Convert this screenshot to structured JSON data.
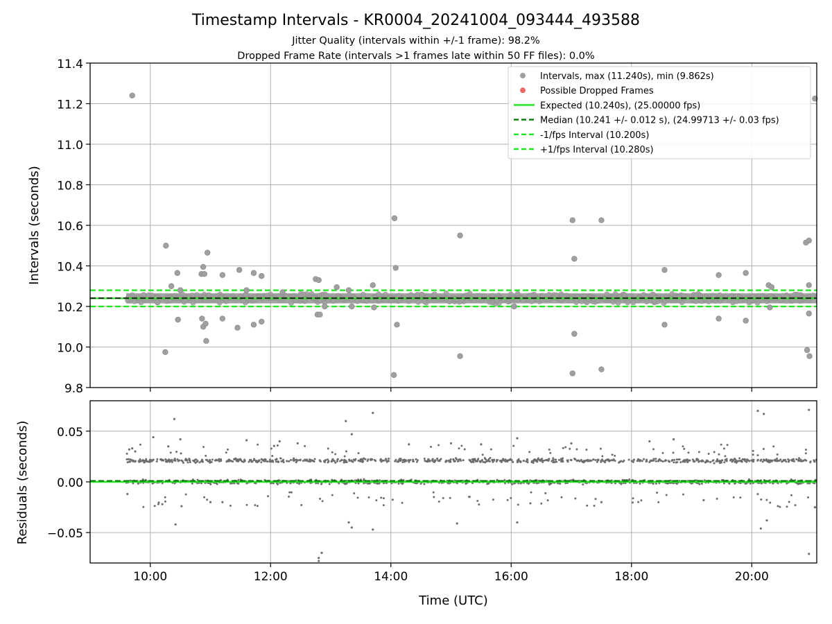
{
  "figure": {
    "title": "Timestamp Intervals - KR0004_20241004_093444_493588",
    "subtitle_1": "Jitter Quality (intervals within +/-1 frame): 98.2%",
    "subtitle_2": "Dropped Frame Rate (intervals >1 frames late within 50 FF files): 0.0%"
  },
  "colors": {
    "points": "#a0a0a0",
    "points_edge": "#8c8c8c",
    "dropped": "#f06a6a",
    "expected": "#1ee61e",
    "median": "#007a00",
    "interval_bounds": "#1ee61e",
    "residuals": "#6e6e6e",
    "grid": "#b0b0b0"
  },
  "chart_data": [
    {
      "type": "scatter",
      "panel": "intervals",
      "ylabel": "Intervals (seconds)",
      "xlim_hours": [
        9.0,
        21.08
      ],
      "ylim": [
        9.8,
        11.4
      ],
      "yticks": [
        9.8,
        10.0,
        10.2,
        10.4,
        10.6,
        10.8,
        11.0,
        11.2,
        11.4
      ],
      "ytick_labels": [
        "9.8",
        "10.0",
        "10.2",
        "10.4",
        "10.6",
        "10.8",
        "11.0",
        "11.2",
        "11.4"
      ],
      "grid": true,
      "legend_placement": "top-right",
      "legend": [
        {
          "label": "Intervals, max (11.240s), min (9.862s)",
          "kind": "point"
        },
        {
          "label": "Possible Dropped Frames",
          "kind": "dropped"
        },
        {
          "label": "Expected (10.240s), (25.00000 fps)",
          "kind": "solid"
        },
        {
          "label": "Median (10.241 +/- 0.012 s), (24.99713 +/- 0.03 fps)",
          "kind": "median"
        },
        {
          "label": "-1/fps Interval (10.200s)",
          "kind": "dash"
        },
        {
          "label": "+1/fps Interval (10.280s)",
          "kind": "dash"
        }
      ],
      "reference_lines": {
        "expected": 10.24,
        "median": 10.241,
        "lower": 10.2,
        "upper": 10.28
      },
      "band": {
        "x_start": 9.6,
        "x_end": 21.08,
        "low": 10.215,
        "high": 10.265
      },
      "outliers": [
        [
          9.7,
          11.24
        ],
        [
          10.26,
          10.5
        ],
        [
          10.25,
          9.975
        ],
        [
          10.12,
          10.22
        ],
        [
          10.35,
          10.3
        ],
        [
          10.45,
          10.365
        ],
        [
          10.46,
          10.135
        ],
        [
          10.5,
          10.28
        ],
        [
          10.85,
          10.36
        ],
        [
          10.88,
          10.395
        ],
        [
          10.86,
          10.14
        ],
        [
          10.9,
          10.36
        ],
        [
          10.88,
          10.1
        ],
        [
          10.92,
          10.115
        ],
        [
          10.95,
          10.465
        ],
        [
          10.93,
          10.03
        ],
        [
          11.2,
          10.355
        ],
        [
          11.2,
          10.14
        ],
        [
          11.48,
          10.38
        ],
        [
          11.45,
          10.095
        ],
        [
          11.6,
          10.28
        ],
        [
          11.72,
          10.365
        ],
        [
          11.72,
          10.11
        ],
        [
          11.85,
          10.35
        ],
        [
          11.85,
          10.125
        ],
        [
          12.2,
          10.27
        ],
        [
          12.75,
          10.335
        ],
        [
          12.8,
          10.33
        ],
        [
          12.78,
          10.16
        ],
        [
          12.82,
          10.16
        ],
        [
          12.9,
          10.2
        ],
        [
          13.1,
          10.295
        ],
        [
          13.3,
          10.28
        ],
        [
          13.35,
          10.2
        ],
        [
          13.7,
          10.305
        ],
        [
          13.72,
          10.195
        ],
        [
          14.06,
          10.635
        ],
        [
          14.08,
          10.39
        ],
        [
          14.1,
          10.11
        ],
        [
          14.05,
          9.862
        ],
        [
          15.15,
          10.55
        ],
        [
          15.15,
          9.955
        ],
        [
          16.05,
          10.2
        ],
        [
          17.02,
          10.625
        ],
        [
          17.05,
          10.435
        ],
        [
          17.05,
          10.065
        ],
        [
          17.02,
          9.87
        ],
        [
          17.5,
          10.625
        ],
        [
          17.5,
          9.89
        ],
        [
          18.55,
          10.38
        ],
        [
          18.55,
          10.11
        ],
        [
          19.45,
          10.355
        ],
        [
          19.45,
          10.14
        ],
        [
          19.9,
          10.365
        ],
        [
          19.9,
          10.13
        ],
        [
          20.28,
          10.305
        ],
        [
          20.33,
          10.295
        ],
        [
          20.3,
          10.195
        ],
        [
          20.9,
          10.515
        ],
        [
          20.95,
          10.525
        ],
        [
          20.92,
          9.985
        ],
        [
          20.96,
          9.955
        ],
        [
          20.95,
          10.305
        ],
        [
          20.95,
          10.165
        ],
        [
          21.05,
          11.225
        ]
      ]
    },
    {
      "type": "scatter",
      "panel": "residuals",
      "xlabel": "Time (UTC)",
      "ylabel": "Residuals (seconds)",
      "xlim_hours": [
        9.0,
        21.08
      ],
      "ylim": [
        -0.08,
        0.08
      ],
      "yticks": [
        -0.05,
        0.0,
        0.05
      ],
      "ytick_labels": [
        "−0.05",
        "0.00",
        "0.05"
      ],
      "xticks": [
        10,
        12,
        14,
        16,
        18,
        20
      ],
      "xtick_labels": [
        "10:00",
        "12:00",
        "14:00",
        "16:00",
        "18:00",
        "20:00"
      ],
      "grid": true,
      "reference_lines": {
        "expected": 0.0,
        "median": 0.001
      },
      "clusters": [
        {
          "center": 0.021,
          "spread": 0.0025,
          "x_start": 9.6,
          "x_end": 21.08
        },
        {
          "center": 0.0,
          "spread": 0.0025,
          "x_start": 9.6,
          "x_end": 21.08
        }
      ],
      "outliers": [
        [
          10.4,
          0.062
        ],
        [
          10.42,
          -0.042
        ],
        [
          12.8,
          -0.075
        ],
        [
          12.8,
          -0.078
        ],
        [
          12.85,
          -0.07
        ],
        [
          13.25,
          0.06
        ],
        [
          13.3,
          -0.04
        ],
        [
          13.35,
          -0.045
        ],
        [
          13.35,
          0.047
        ],
        [
          13.7,
          0.068
        ],
        [
          13.7,
          -0.047
        ],
        [
          15.1,
          -0.041
        ],
        [
          16.1,
          -0.04
        ],
        [
          20.1,
          0.07
        ],
        [
          20.15,
          -0.046
        ],
        [
          20.2,
          0.067
        ],
        [
          20.25,
          -0.038
        ],
        [
          20.95,
          0.071
        ],
        [
          20.95,
          -0.071
        ],
        [
          21.05,
          -0.025
        ],
        [
          9.65,
          0.032
        ],
        [
          9.7,
          0.033
        ],
        [
          9.62,
          -0.012
        ],
        [
          9.75,
          0.03
        ],
        [
          10.05,
          0.044
        ],
        [
          10.3,
          0.035
        ],
        [
          10.5,
          0.042
        ],
        [
          10.2,
          -0.022
        ],
        [
          10.52,
          -0.024
        ],
        [
          11.6,
          0.041
        ],
        [
          12.15,
          0.04
        ],
        [
          11.2,
          -0.02
        ],
        [
          11.0,
          -0.02
        ],
        [
          12.45,
          0.038
        ],
        [
          14.3,
          0.037
        ],
        [
          15.0,
          0.038
        ],
        [
          15.5,
          0.037
        ],
        [
          16.1,
          0.043
        ],
        [
          17.0,
          0.038
        ],
        [
          18.3,
          0.04
        ],
        [
          18.7,
          0.042
        ],
        [
          17.5,
          -0.02
        ],
        [
          19.2,
          -0.018
        ]
      ]
    }
  ]
}
